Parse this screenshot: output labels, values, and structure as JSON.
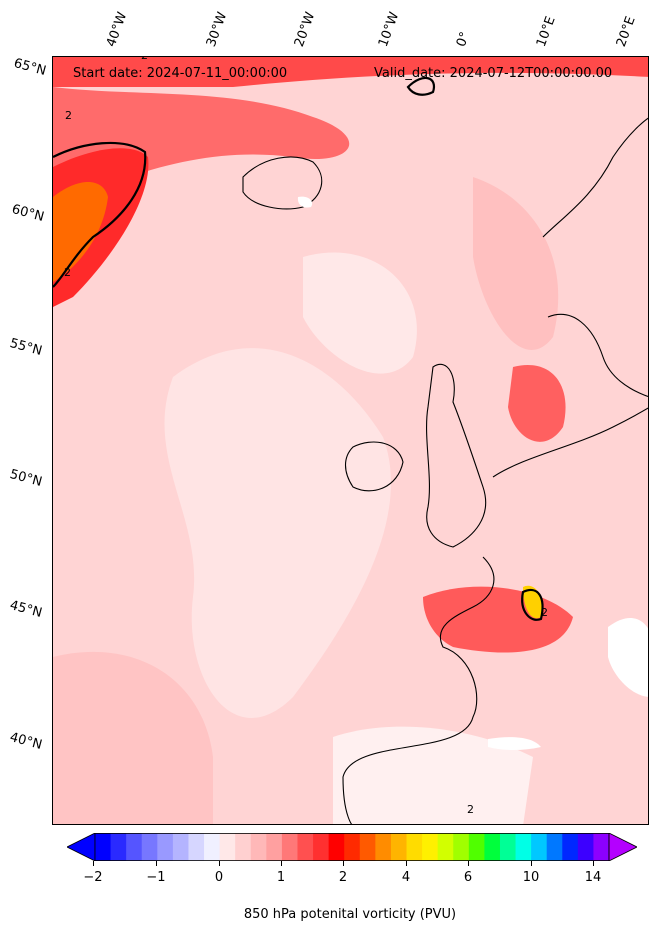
{
  "header": {
    "start_date": "Start date: 2024-07-11_00:00:00",
    "valid_date": "Valid_date: 2024-07-12T00:00:00.00"
  },
  "lon_labels": [
    "40°W",
    "30°W",
    "20°W",
    "10°W",
    "0°",
    "10°E",
    "20°E"
  ],
  "lat_labels": [
    "65°N",
    "60°N",
    "55°N",
    "50°N",
    "45°N",
    "40°N"
  ],
  "colorbar": {
    "title": "850 hPa potenital vorticity (PVU)",
    "tick_labels": [
      "−2",
      "−1",
      "0",
      "1",
      "2",
      "4",
      "6",
      "10",
      "14"
    ],
    "colors": [
      "#0000ff",
      "#2a2aff",
      "#5555ff",
      "#7777ff",
      "#9999ff",
      "#b4b4ff",
      "#d6d6ff",
      "#f0f0ff",
      "#ffe8e8",
      "#ffd0d0",
      "#ffb8b8",
      "#ffa0a0",
      "#ff7878",
      "#ff5050",
      "#ff3030",
      "#ff0000",
      "#ff2a00",
      "#ff5a00",
      "#ff8c00",
      "#ffb400",
      "#ffdc00",
      "#fff000",
      "#d2ff00",
      "#a0ff00",
      "#50ff00",
      "#00ff3c",
      "#00ff96",
      "#00ffe6",
      "#00c8ff",
      "#0078ff",
      "#0028ff",
      "#3c00ff",
      "#8c00ff"
    ],
    "under_color": "#0000ff",
    "over_color": "#b400ff"
  },
  "contour_labels": [
    "2",
    "2",
    "2",
    "2",
    "2"
  ]
}
